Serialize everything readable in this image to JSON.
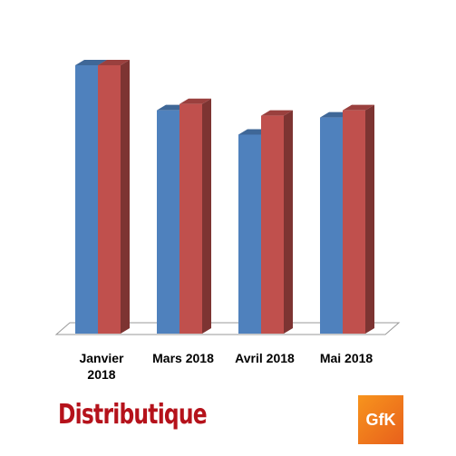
{
  "chart_data": {
    "type": "bar3d",
    "categories": [
      "Janvier 2018",
      "Mars 2018",
      "Avril 2018",
      "Mai 2018"
    ],
    "series": [
      {
        "color": "#4f81bd",
        "values": [
          298,
          248,
          221,
          240
        ]
      },
      {
        "color": "#c0504d",
        "values": [
          298,
          255,
          242,
          248
        ]
      }
    ],
    "ylim": [
      0,
      300
    ]
  },
  "logos": {
    "left": "Distributique",
    "right": "GfK"
  }
}
